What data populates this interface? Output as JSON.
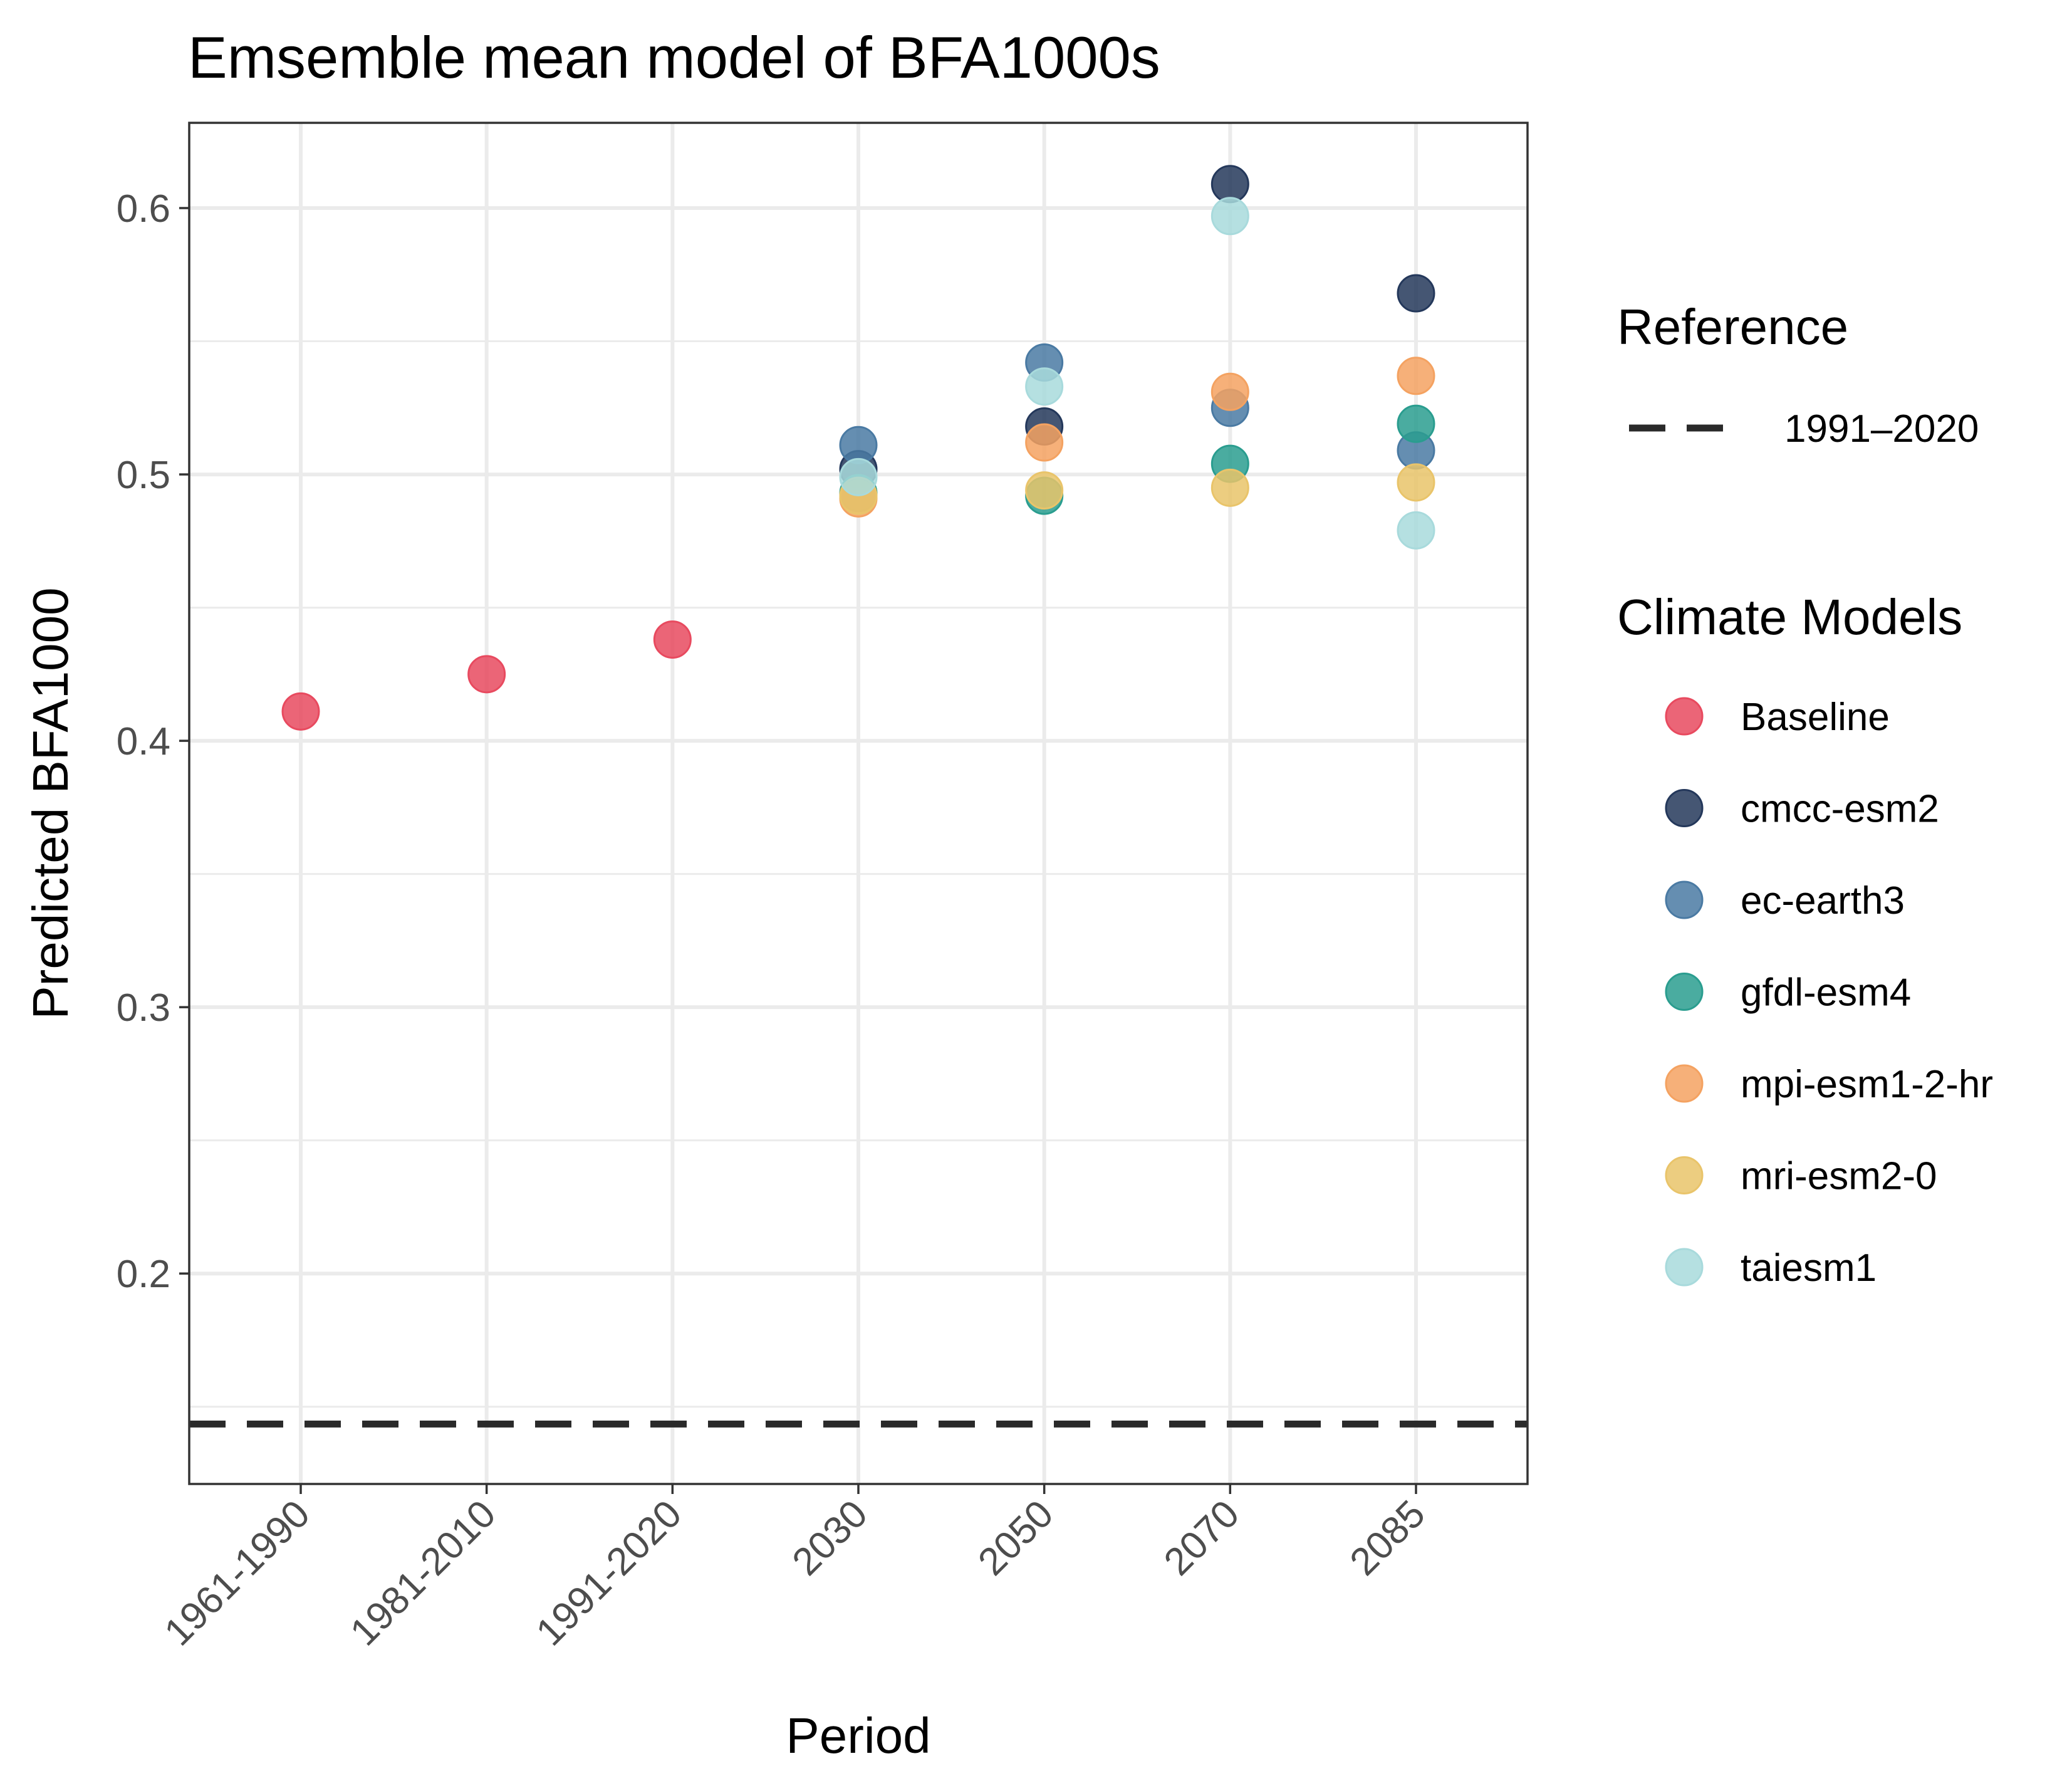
{
  "chart_data": {
    "type": "scatter",
    "title": "Emsemble mean model of BFA1000s",
    "xlabel": "Period",
    "ylabel": "Predicted BFA1000",
    "categories": [
      "1961-1990",
      "1981-2010",
      "1991-2020",
      "2030",
      "2050",
      "2070",
      "2085"
    ],
    "ylim": [
      0.121,
      0.632
    ],
    "yticks": [
      0.2,
      0.3,
      0.4,
      0.5,
      0.6
    ],
    "ytick_labels": [
      "0.2",
      "0.3",
      "0.4",
      "0.5",
      "0.6"
    ],
    "grid": true,
    "legend_position": "right",
    "reference": {
      "legend_title": "Reference",
      "label": "1991–2020",
      "value": 0.1435,
      "style": "dashed",
      "color": "#2a2a2a"
    },
    "legend_title": "Climate Models",
    "series": [
      {
        "name": "Baseline",
        "color": "#e84a5f",
        "points": [
          {
            "x": "1961-1990",
            "y": 0.411
          },
          {
            "x": "1981-2010",
            "y": 0.425
          },
          {
            "x": "1991-2020",
            "y": 0.438
          }
        ]
      },
      {
        "name": "cmcc-esm2",
        "color": "#24385b",
        "points": [
          {
            "x": "2030",
            "y": 0.502
          },
          {
            "x": "2050",
            "y": 0.518
          },
          {
            "x": "2070",
            "y": 0.609
          },
          {
            "x": "2085",
            "y": 0.568
          }
        ]
      },
      {
        "name": "ec-earth3",
        "color": "#4a7aa3",
        "points": [
          {
            "x": "2030",
            "y": 0.511
          },
          {
            "x": "2050",
            "y": 0.542
          },
          {
            "x": "2070",
            "y": 0.525
          },
          {
            "x": "2085",
            "y": 0.509
          }
        ]
      },
      {
        "name": "gfdl-esm4",
        "color": "#2a9d8f",
        "points": [
          {
            "x": "2030",
            "y": 0.493
          },
          {
            "x": "2050",
            "y": 0.492
          },
          {
            "x": "2070",
            "y": 0.504
          },
          {
            "x": "2085",
            "y": 0.519
          }
        ]
      },
      {
        "name": "mpi-esm1-2-hr",
        "color": "#f4a261",
        "points": [
          {
            "x": "2030",
            "y": 0.491
          },
          {
            "x": "2050",
            "y": 0.512
          },
          {
            "x": "2070",
            "y": 0.531
          },
          {
            "x": "2085",
            "y": 0.537
          }
        ]
      },
      {
        "name": "mri-esm2-0",
        "color": "#e9c46a",
        "points": [
          {
            "x": "2030",
            "y": 0.492
          },
          {
            "x": "2050",
            "y": 0.494
          },
          {
            "x": "2070",
            "y": 0.495
          },
          {
            "x": "2085",
            "y": 0.497
          }
        ]
      },
      {
        "name": "taiesm1",
        "color": "#a8dadc",
        "points": [
          {
            "x": "2030",
            "y": 0.499
          },
          {
            "x": "2050",
            "y": 0.533
          },
          {
            "x": "2070",
            "y": 0.597
          },
          {
            "x": "2085",
            "y": 0.479
          }
        ]
      }
    ]
  }
}
